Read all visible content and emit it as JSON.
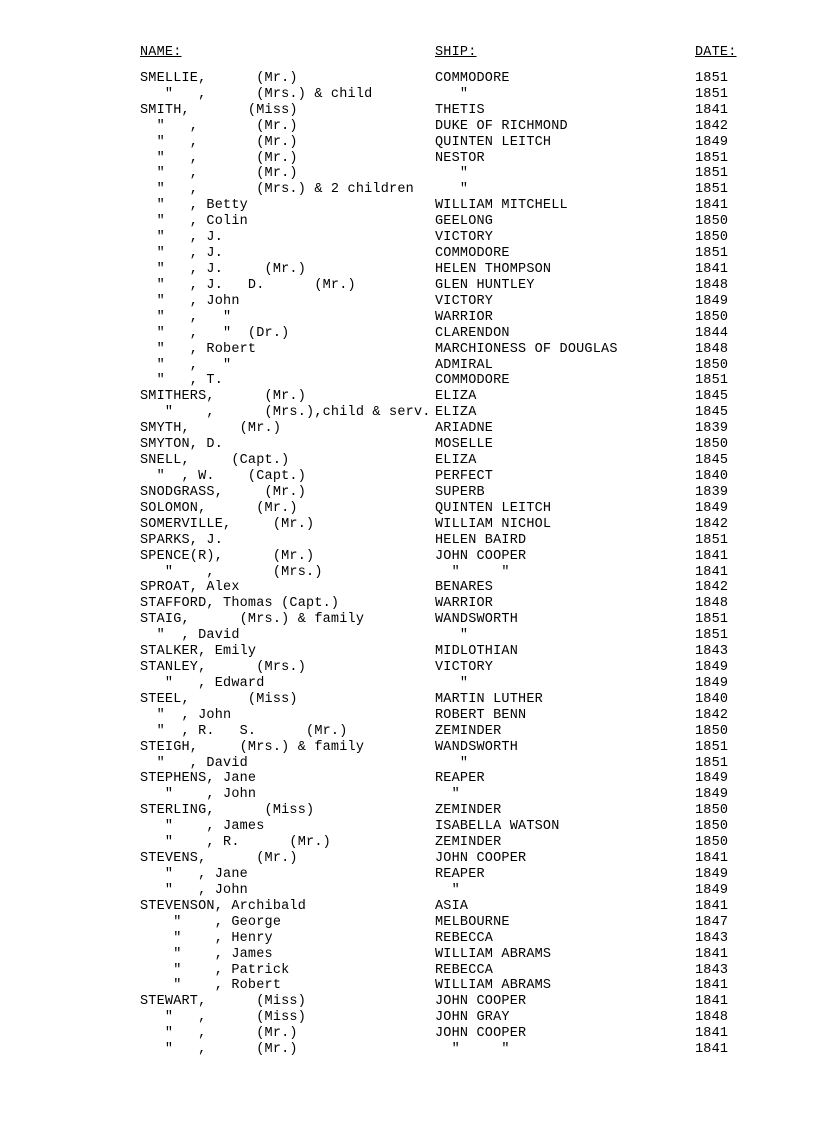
{
  "header": {
    "name": "NAME:",
    "ship": "SHIP:",
    "date": "DATE:"
  },
  "rows": [
    {
      "name": "SMELLIE,      (Mr.)",
      "ship": "COMMODORE",
      "date": "1851"
    },
    {
      "name": "   \"   ,      (Mrs.) & child",
      "ship": "   \"",
      "date": "1851"
    },
    {
      "name": "SMITH,       (Miss)",
      "ship": "THETIS",
      "date": "1841"
    },
    {
      "name": "  \"   ,       (Mr.)",
      "ship": "DUKE OF RICHMOND",
      "date": "1842"
    },
    {
      "name": "  \"   ,       (Mr.)",
      "ship": "QUINTEN LEITCH",
      "date": "1849"
    },
    {
      "name": "  \"   ,       (Mr.)",
      "ship": "NESTOR",
      "date": "1851"
    },
    {
      "name": "  \"   ,       (Mr.)",
      "ship": "   \"",
      "date": "1851"
    },
    {
      "name": "  \"   ,       (Mrs.) & 2 children",
      "ship": "   \"",
      "date": "1851"
    },
    {
      "name": "  \"   , Betty",
      "ship": "WILLIAM MITCHELL",
      "date": "1841"
    },
    {
      "name": "  \"   , Colin",
      "ship": "GEELONG",
      "date": "1850"
    },
    {
      "name": "  \"   , J.",
      "ship": "VICTORY",
      "date": "1850"
    },
    {
      "name": "  \"   , J.",
      "ship": "COMMODORE",
      "date": "1851"
    },
    {
      "name": "  \"   , J.     (Mr.)",
      "ship": "HELEN THOMPSON",
      "date": "1841"
    },
    {
      "name": "  \"   , J.   D.      (Mr.)",
      "ship": "GLEN HUNTLEY",
      "date": "1848"
    },
    {
      "name": "  \"   , John",
      "ship": "VICTORY",
      "date": "1849"
    },
    {
      "name": "  \"   ,   \"",
      "ship": "WARRIOR",
      "date": "1850"
    },
    {
      "name": "  \"   ,   \"  (Dr.)",
      "ship": "CLARENDON",
      "date": "1844"
    },
    {
      "name": "  \"   , Robert",
      "ship": "MARCHIONESS OF DOUGLAS",
      "date": "1848"
    },
    {
      "name": "  \"   ,   \"",
      "ship": "ADMIRAL",
      "date": "1850"
    },
    {
      "name": "  \"   , T.",
      "ship": "COMMODORE",
      "date": "1851"
    },
    {
      "name": "SMITHERS,      (Mr.)",
      "ship": "ELIZA",
      "date": "1845"
    },
    {
      "name": "   \"    ,      (Mrs.),child & serv.",
      "ship": "ELIZA",
      "date": "1845"
    },
    {
      "name": "SMYTH,      (Mr.)",
      "ship": "ARIADNE",
      "date": "1839"
    },
    {
      "name": "SMYTON, D.",
      "ship": "MOSELLE",
      "date": "1850"
    },
    {
      "name": "SNELL,     (Capt.)",
      "ship": "ELIZA",
      "date": "1845"
    },
    {
      "name": "  \"  , W.    (Capt.)",
      "ship": "PERFECT",
      "date": "1840"
    },
    {
      "name": "SNODGRASS,     (Mr.)",
      "ship": "SUPERB",
      "date": "1839"
    },
    {
      "name": "SOLOMON,      (Mr.)",
      "ship": "QUINTEN LEITCH",
      "date": "1849"
    },
    {
      "name": "SOMERVILLE,     (Mr.)",
      "ship": "WILLIAM NICHOL",
      "date": "1842"
    },
    {
      "name": "SPARKS, J.",
      "ship": "HELEN BAIRD",
      "date": "1851"
    },
    {
      "name": "SPENCE(R),      (Mr.)",
      "ship": "JOHN COOPER",
      "date": "1841"
    },
    {
      "name": "   \"    ,       (Mrs.)",
      "ship": "  \"     \"",
      "date": "1841"
    },
    {
      "name": "SPROAT, Alex",
      "ship": "BENARES",
      "date": "1842"
    },
    {
      "name": "STAFFORD, Thomas (Capt.)",
      "ship": "WARRIOR",
      "date": "1848"
    },
    {
      "name": "STAIG,      (Mrs.) & family",
      "ship": "WANDSWORTH",
      "date": "1851"
    },
    {
      "name": "  \"  , David",
      "ship": "   \"",
      "date": "1851"
    },
    {
      "name": "STALKER, Emily",
      "ship": "MIDLOTHIAN",
      "date": "1843"
    },
    {
      "name": "STANLEY,      (Mrs.)",
      "ship": "VICTORY",
      "date": "1849"
    },
    {
      "name": "   \"   , Edward",
      "ship": "   \"",
      "date": "1849"
    },
    {
      "name": "STEEL,       (Miss)",
      "ship": "MARTIN LUTHER",
      "date": "1840"
    },
    {
      "name": "  \"  , John",
      "ship": "ROBERT BENN",
      "date": "1842"
    },
    {
      "name": "  \"  , R.   S.      (Mr.)",
      "ship": "ZEMINDER",
      "date": "1850"
    },
    {
      "name": "STEIGH,     (Mrs.) & family",
      "ship": "WANDSWORTH",
      "date": "1851"
    },
    {
      "name": "  \"   , David",
      "ship": "   \"",
      "date": "1851"
    },
    {
      "name": "STEPHENS, Jane",
      "ship": "REAPER",
      "date": "1849"
    },
    {
      "name": "   \"    , John",
      "ship": "  \"",
      "date": "1849"
    },
    {
      "name": "STERLING,      (Miss)",
      "ship": "ZEMINDER",
      "date": "1850"
    },
    {
      "name": "   \"    , James",
      "ship": "ISABELLA WATSON",
      "date": "1850"
    },
    {
      "name": "   \"    , R.      (Mr.)",
      "ship": "ZEMINDER",
      "date": "1850"
    },
    {
      "name": "STEVENS,      (Mr.)",
      "ship": "JOHN COOPER",
      "date": "1841"
    },
    {
      "name": "   \"   , Jane",
      "ship": "REAPER",
      "date": "1849"
    },
    {
      "name": "   \"   , John",
      "ship": "  \"",
      "date": "1849"
    },
    {
      "name": "STEVENSON, Archibald",
      "ship": "ASIA",
      "date": "1841"
    },
    {
      "name": "    \"    , George",
      "ship": "MELBOURNE",
      "date": "1847"
    },
    {
      "name": "    \"    , Henry",
      "ship": "REBECCA",
      "date": "1843"
    },
    {
      "name": "    \"    , James",
      "ship": "WILLIAM ABRAMS",
      "date": "1841"
    },
    {
      "name": "    \"    , Patrick",
      "ship": "REBECCA",
      "date": "1843"
    },
    {
      "name": "    \"    , Robert",
      "ship": "WILLIAM ABRAMS",
      "date": "1841"
    },
    {
      "name": "STEWART,      (Miss)",
      "ship": "JOHN COOPER",
      "date": "1841"
    },
    {
      "name": "   \"   ,      (Miss)",
      "ship": "JOHN GRAY",
      "date": "1848"
    },
    {
      "name": "   \"   ,      (Mr.)",
      "ship": "JOHN COOPER",
      "date": "1841"
    },
    {
      "name": "   \"   ,      (Mr.)",
      "ship": "  \"     \"",
      "date": "1841"
    }
  ]
}
